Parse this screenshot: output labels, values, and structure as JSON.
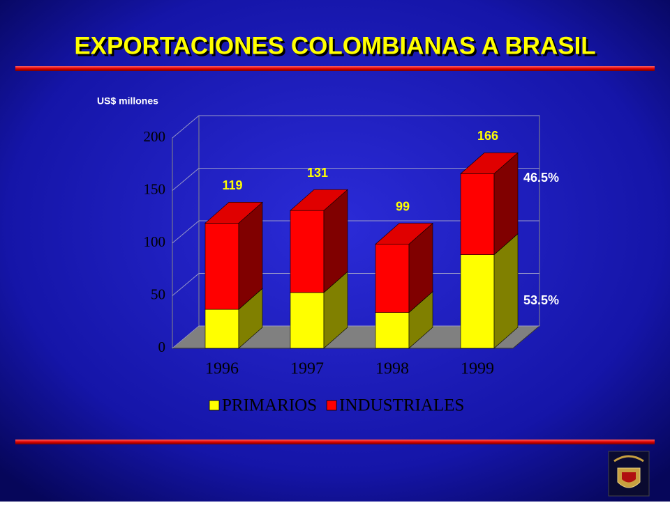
{
  "chart_data": {
    "type": "bar3d_stacked",
    "title": "EXPORTACIONES COLOMBIANAS A BRASIL",
    "y_axis_label": "US$ millones",
    "categories": [
      "1996",
      "1997",
      "1998",
      "1999"
    ],
    "series": [
      {
        "name": "PRIMARIOS",
        "color": "#ffff00",
        "side_color": "#808000",
        "values": [
          37,
          53,
          34,
          89
        ]
      },
      {
        "name": "INDUSTRIALES",
        "color": "#ff0000",
        "side_color": "#800000",
        "values": [
          82,
          78,
          65,
          77
        ]
      }
    ],
    "totals": [
      119,
      131,
      99,
      166
    ],
    "annotations": [
      "46.5%",
      "53.5%"
    ],
    "ylim": [
      0,
      200
    ],
    "yticks": [
      0,
      50,
      100,
      150,
      200
    ],
    "grid": true
  }
}
